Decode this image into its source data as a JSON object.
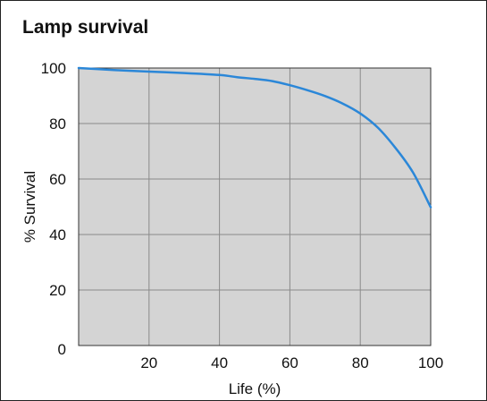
{
  "chart_data": {
    "type": "line",
    "title": "Lamp survival",
    "xlabel": "Life (%)",
    "ylabel": "% Survival",
    "xlim": [
      0,
      100
    ],
    "ylim": [
      0,
      100
    ],
    "x_ticks": [
      20,
      40,
      60,
      80,
      100
    ],
    "y_ticks": [
      0,
      20,
      40,
      60,
      80,
      100
    ],
    "grid": true,
    "series": [
      {
        "x": [
          0,
          10,
          20,
          30,
          40,
          45,
          50,
          55,
          60,
          65,
          70,
          75,
          80,
          85,
          90,
          95,
          100
        ],
        "y": [
          100,
          99.3,
          98.7,
          98.2,
          97.5,
          96.7,
          96.1,
          95.3,
          93.8,
          92.0,
          89.9,
          87.2,
          83.6,
          78.5,
          71.2,
          62.3,
          49.8
        ]
      }
    ],
    "colors": {
      "plot_background": "#d4d4d4",
      "grid": "#8a8a8a",
      "line": "#2b87d8"
    }
  }
}
